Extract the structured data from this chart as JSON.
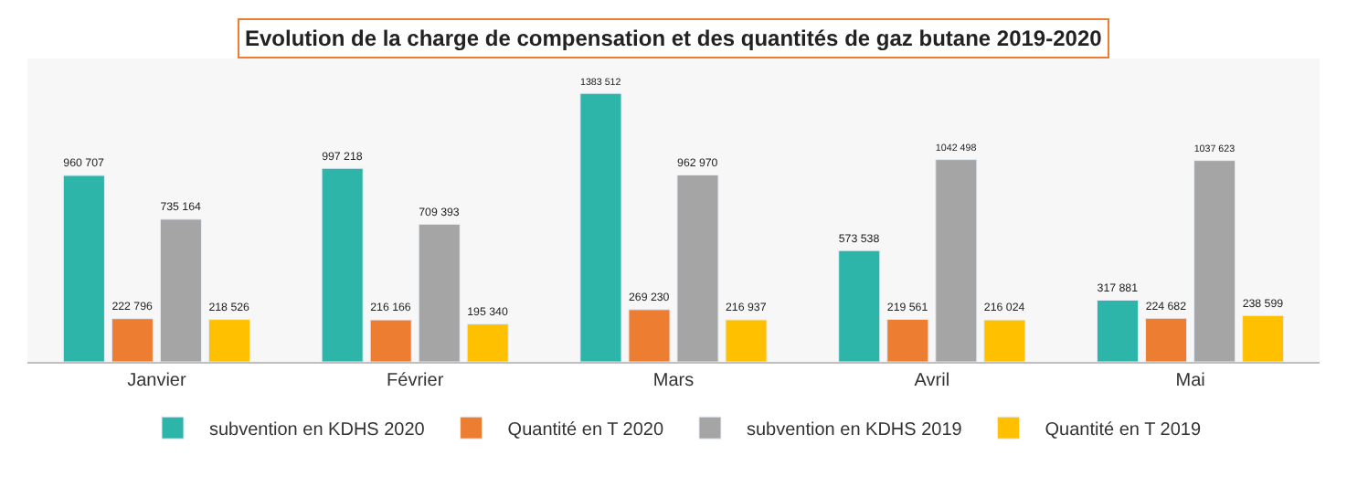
{
  "chart_data": {
    "type": "bar",
    "title": "Evolution de la charge de compensation et des quantités de gaz butane 2019-2020",
    "categories": [
      "Janvier",
      "Février",
      "Mars",
      "Avril",
      "Mai"
    ],
    "series": [
      {
        "name": "subvention en KDHS 2020",
        "color": "#2cb5a8",
        "values": [
          960707,
          997218,
          1383512,
          573538,
          317881
        ],
        "value_labels": [
          "960 707",
          "997 218",
          "1383 512",
          "573 538",
          "317 881"
        ]
      },
      {
        "name": "Quantité en T 2020",
        "color": "#ed7d31",
        "values": [
          222796,
          216166,
          269230,
          219561,
          224682
        ],
        "value_labels": [
          "222 796",
          "216 166",
          "269 230",
          "219 561",
          "224 682"
        ]
      },
      {
        "name": "subvention en KDHS 2019",
        "color": "#a5a5a5",
        "values": [
          735164,
          709393,
          962970,
          1042498,
          1037623
        ],
        "value_labels": [
          "735 164",
          "709 393",
          "962 970",
          "1042 498",
          "1037 623"
        ]
      },
      {
        "name": "Quantité en T 2019",
        "color": "#ffc000",
        "values": [
          218526,
          195340,
          216937,
          216024,
          238599
        ],
        "value_labels": [
          "218 526",
          "195 340",
          "216 937",
          "216 024",
          "238 599"
        ]
      }
    ],
    "legend": "bottom"
  }
}
